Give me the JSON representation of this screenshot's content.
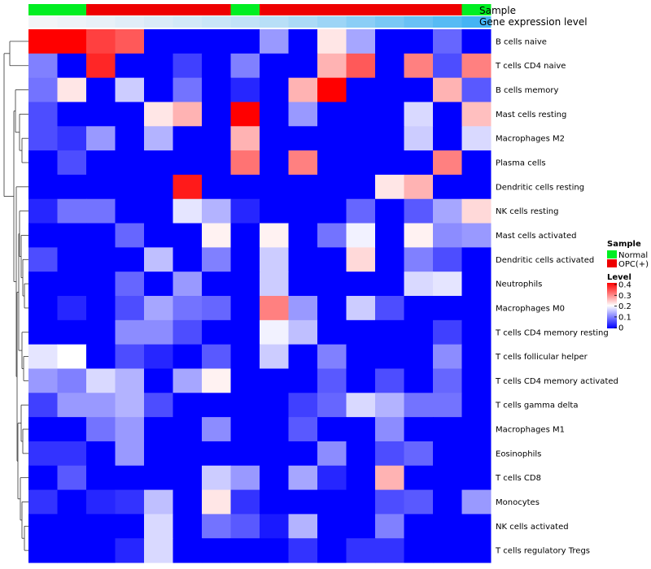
{
  "chart_data": {
    "type": "heatmap",
    "annotation_labels": {
      "sample": "Sample",
      "expression": "Gene expression level"
    },
    "sample_annotation": [
      "Normal",
      "Normal",
      "OPC(+)",
      "OPC(+)",
      "OPC(+)",
      "OPC(+)",
      "OPC(+)",
      "Normal",
      "OPC(+)",
      "OPC(+)",
      "OPC(+)",
      "OPC(+)",
      "OPC(+)",
      "OPC(+)",
      "OPC(+)",
      "Normal"
    ],
    "expression_level": [
      0.02,
      0.05,
      0.08,
      0.12,
      0.16,
      0.2,
      0.25,
      0.3,
      0.35,
      0.42,
      0.5,
      0.6,
      0.7,
      0.8,
      0.9,
      1.0
    ],
    "rows": [
      "B cells naive",
      "T cells CD4 naive",
      "B cells memory",
      "Mast cells resting",
      "Macrophages M2",
      "Plasma cells",
      "Dendritic cells resting",
      "NK cells resting",
      "Mast cells activated",
      "Dendritic cells activated",
      "Neutrophils",
      "Macrophages M0",
      "T cells CD4 memory resting",
      "T cells follicular helper",
      "T cells CD4 memory activated",
      "T cells gamma delta",
      "Macrophages M1",
      "Eosinophils",
      "T cells CD8",
      "Monocytes",
      "NK cells activated",
      "T cells regulatory  Tregs"
    ],
    "values": [
      [
        0.4,
        0.4,
        0.35,
        0.33,
        0,
        0,
        0,
        0,
        0.12,
        0,
        0.22,
        0.13,
        0,
        0,
        0.08,
        0
      ],
      [
        0.1,
        0,
        0.37,
        0,
        0,
        0.05,
        0,
        0.1,
        0,
        0,
        0.26,
        0.33,
        0,
        0.3,
        0.06,
        0.3
      ],
      [
        0.09,
        0.22,
        0,
        0.16,
        0,
        0.09,
        0,
        0.03,
        0,
        0.26,
        0.4,
        0,
        0,
        0,
        0.26,
        0.07
      ],
      [
        0.06,
        0,
        0,
        0,
        0.22,
        0.26,
        0,
        0.4,
        0,
        0.12,
        0,
        0,
        0,
        0.17,
        0,
        0.25
      ],
      [
        0.06,
        0.04,
        0.12,
        0,
        0.14,
        0,
        0,
        0.26,
        0,
        0,
        0,
        0,
        0,
        0.16,
        0,
        0.17
      ],
      [
        0,
        0.06,
        0,
        0,
        0,
        0,
        0,
        0.31,
        0,
        0.3,
        0,
        0,
        0,
        0,
        0.3,
        0
      ],
      [
        0,
        0,
        0,
        0,
        0,
        0.38,
        0,
        0,
        0,
        0,
        0,
        0,
        0.22,
        0.26,
        0,
        0
      ],
      [
        0.03,
        0.09,
        0.09,
        0,
        0,
        0.18,
        0.14,
        0.03,
        0,
        0,
        0,
        0.08,
        0,
        0.07,
        0.13,
        0.23
      ],
      [
        0,
        0,
        0,
        0.08,
        0,
        0,
        0.21,
        0,
        0.21,
        0,
        0.09,
        0.19,
        0,
        0.21,
        0.11,
        0.12
      ],
      [
        0.06,
        0,
        0,
        0,
        0.15,
        0,
        0.1,
        0,
        0.16,
        0,
        0,
        0.23,
        0,
        0.1,
        0.06,
        0
      ],
      [
        0,
        0,
        0,
        0.08,
        0,
        0.12,
        0,
        0,
        0.16,
        0,
        0,
        0,
        0,
        0.17,
        0.18,
        0
      ],
      [
        0,
        0.03,
        0,
        0.06,
        0.13,
        0.09,
        0.08,
        0,
        0.3,
        0.12,
        0,
        0.16,
        0.06,
        0,
        0,
        0
      ],
      [
        0,
        0,
        0,
        0.11,
        0.11,
        0.06,
        0,
        0,
        0.19,
        0.15,
        0,
        0,
        0,
        0,
        0.05,
        0
      ],
      [
        0.18,
        0.2,
        0,
        0.06,
        0.03,
        0,
        0.07,
        0,
        0.16,
        0,
        0.1,
        0,
        0,
        0,
        0.11,
        0
      ],
      [
        0.12,
        0.1,
        0.17,
        0.14,
        0,
        0.13,
        0.21,
        0,
        0,
        0,
        0.07,
        0,
        0.06,
        0,
        0.08,
        0
      ],
      [
        0.05,
        0.12,
        0.12,
        0.14,
        0.06,
        0,
        0,
        0,
        0,
        0.05,
        0.08,
        0.17,
        0.14,
        0.09,
        0.09,
        0
      ],
      [
        0,
        0,
        0.09,
        0.12,
        0,
        0,
        0.11,
        0,
        0,
        0.07,
        0,
        0,
        0.11,
        0,
        0,
        0
      ],
      [
        0.04,
        0.04,
        0,
        0.12,
        0,
        0,
        0,
        0,
        0,
        0,
        0.11,
        0,
        0.06,
        0.08,
        0,
        0
      ],
      [
        0,
        0.07,
        0,
        0,
        0,
        0,
        0.16,
        0.12,
        0,
        0.13,
        0.03,
        0,
        0.26,
        0,
        0,
        0
      ],
      [
        0.04,
        0,
        0.03,
        0.04,
        0.15,
        0,
        0.22,
        0.04,
        0,
        0,
        0,
        0,
        0.06,
        0.07,
        0,
        0.12
      ],
      [
        0,
        0,
        0,
        0,
        0.17,
        0,
        0.09,
        0.07,
        0.02,
        0.14,
        0,
        0,
        0.1,
        0,
        0,
        0
      ],
      [
        0,
        0,
        0,
        0.03,
        0.17,
        0,
        0,
        0,
        0,
        0.04,
        0,
        0.04,
        0.04,
        0,
        0,
        0
      ]
    ],
    "legend": {
      "sample_title": "Sample",
      "sample_entries": [
        {
          "label": "Normal",
          "color": "#00ee22"
        },
        {
          "label": "OPC(+)",
          "color": "#ee0000"
        }
      ],
      "level_title": "Level",
      "level_ticks": [
        "0.4",
        "0.3",
        "0.2",
        "0.1",
        "0"
      ],
      "range": [
        0,
        0.4
      ]
    },
    "colors": {
      "low": "#0000ff",
      "mid": "#ffffff",
      "high": "#ff0000",
      "normal": "#00ee22",
      "opc": "#ee0000",
      "expr_low": "#f6f6f8",
      "expr_high": "#44b4f4"
    },
    "dendrogram": "row clustering tree on left"
  }
}
